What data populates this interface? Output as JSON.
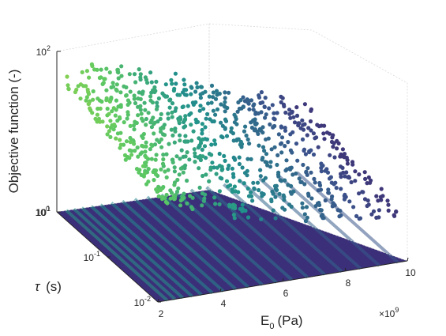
{
  "chart_data": {
    "type": "scatter",
    "title": "",
    "xlabel": "E_0 (Pa)",
    "xlabel_main": "E",
    "xlabel_sub": "0",
    "xlabel_unit": "(Pa)",
    "ylabel": "τ (s)",
    "ylabel_symbol": "τ",
    "ylabel_unit": "(s)",
    "zlabel": "Objective function (-)",
    "x_scale_label": "×10",
    "x_scale_exp": "9",
    "x_scale": 1000000000,
    "xlim": [
      2,
      10
    ],
    "ylim": [
      0.01,
      1
    ],
    "zlim": [
      10,
      100
    ],
    "y_log": true,
    "z_log": true,
    "grid": true,
    "colormap": "viridis",
    "colors": {
      "low": "#440154",
      "mid": "#21918c",
      "high": "#fde725",
      "axis": "#262626",
      "grid": "#d9d9d9"
    },
    "x_ticks": [
      {
        "value": 2,
        "label": "2"
      },
      {
        "value": 4,
        "label": "4"
      },
      {
        "value": 6,
        "label": "6"
      },
      {
        "value": 8,
        "label": "8"
      },
      {
        "value": 10,
        "label": "10"
      }
    ],
    "y_ticks": [
      {
        "value": 1,
        "base": "10",
        "exp": "0"
      },
      {
        "value": 0.1,
        "base": "10",
        "exp": "-1"
      },
      {
        "value": 0.01,
        "base": "10",
        "exp": "-2"
      }
    ],
    "z_ticks": [
      {
        "value": 100,
        "base": "10",
        "exp": "2"
      },
      {
        "value": 10,
        "base": "10",
        "exp": "1"
      }
    ],
    "ridges_E0": [
      2.3,
      2.55,
      2.8,
      3.1,
      3.4,
      3.75,
      4.1,
      4.5,
      4.9,
      5.35,
      5.8,
      6.3,
      6.8,
      7.35,
      7.9,
      8.5,
      9.1,
      9.7
    ],
    "ridge_peak_objective": [
      62,
      66,
      70,
      72,
      74,
      70,
      68,
      64,
      60,
      56,
      52,
      48,
      44,
      40,
      36,
      32,
      30,
      28
    ],
    "ridge_floor_objective": [
      40,
      39,
      38,
      36,
      34,
      33,
      32,
      30,
      28,
      27,
      26,
      25,
      24,
      23,
      22,
      21,
      20,
      19
    ]
  }
}
